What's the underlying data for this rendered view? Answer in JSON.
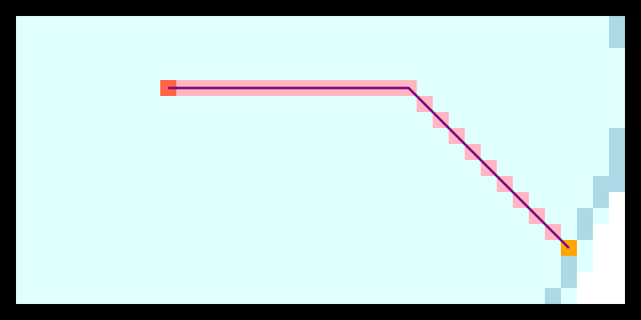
{
  "board": {
    "grid_columns": 40,
    "grid_rows": 20,
    "colors": {
      "border": "#000000",
      "open": "#e0ffff",
      "boundary": "#add8e6",
      "outside": "#ffffff",
      "trail": "#ffb6c1",
      "route": "#800080",
      "start": "#ff6347",
      "current": "#ffa500"
    },
    "cell_kinds": [
      "open",
      "boundary",
      "outside",
      "trail",
      "start",
      "current"
    ],
    "cells": {
      "boundary": [
        [
          38,
          1
        ],
        [
          38,
          2
        ],
        [
          38,
          8
        ],
        [
          38,
          9
        ],
        [
          38,
          10
        ],
        [
          38,
          11
        ],
        [
          37,
          11
        ],
        [
          37,
          12
        ],
        [
          36,
          13
        ],
        [
          36,
          14
        ],
        [
          35,
          15
        ],
        [
          35,
          16
        ],
        [
          35,
          17
        ],
        [
          34,
          18
        ]
      ],
      "outside": [
        [
          38,
          12
        ],
        [
          38,
          13
        ],
        [
          38,
          14
        ],
        [
          38,
          15
        ],
        [
          38,
          16
        ],
        [
          38,
          17
        ],
        [
          38,
          18
        ],
        [
          37,
          14
        ],
        [
          37,
          15
        ],
        [
          37,
          16
        ],
        [
          37,
          17
        ],
        [
          37,
          18
        ],
        [
          36,
          17
        ],
        [
          36,
          18
        ]
      ],
      "trail": [
        [
          11,
          5
        ],
        [
          12,
          5
        ],
        [
          13,
          5
        ],
        [
          14,
          5
        ],
        [
          15,
          5
        ],
        [
          16,
          5
        ],
        [
          17,
          5
        ],
        [
          18,
          5
        ],
        [
          19,
          5
        ],
        [
          20,
          5
        ],
        [
          21,
          5
        ],
        [
          22,
          5
        ],
        [
          23,
          5
        ],
        [
          24,
          5
        ],
        [
          25,
          5
        ],
        [
          26,
          6
        ],
        [
          27,
          7
        ],
        [
          28,
          8
        ],
        [
          29,
          9
        ],
        [
          30,
          10
        ],
        [
          31,
          11
        ],
        [
          32,
          12
        ],
        [
          33,
          13
        ],
        [
          34,
          14
        ]
      ],
      "start": [
        10,
        5
      ],
      "current": [
        35,
        15
      ]
    },
    "route": {
      "points": [
        [
          10.5,
          5.5
        ],
        [
          25.5,
          5.5
        ],
        [
          35.5,
          15.5
        ]
      ]
    }
  }
}
